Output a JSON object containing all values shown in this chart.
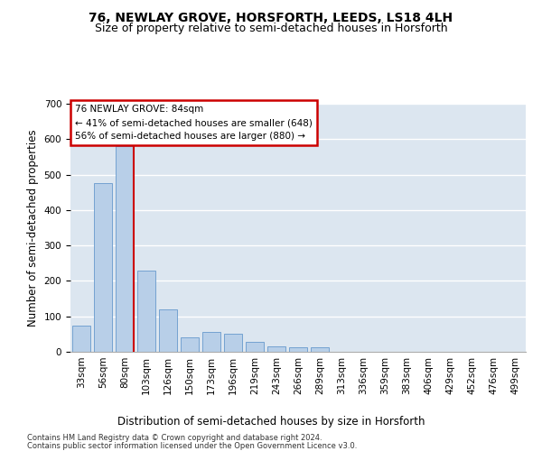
{
  "title": "76, NEWLAY GROVE, HORSFORTH, LEEDS, LS18 4LH",
  "subtitle": "Size of property relative to semi-detached houses in Horsforth",
  "xlabel": "Distribution of semi-detached houses by size in Horsforth",
  "ylabel": "Number of semi-detached properties",
  "bin_labels": [
    "33sqm",
    "56sqm",
    "80sqm",
    "103sqm",
    "126sqm",
    "150sqm",
    "173sqm",
    "196sqm",
    "219sqm",
    "243sqm",
    "266sqm",
    "289sqm",
    "313sqm",
    "336sqm",
    "359sqm",
    "383sqm",
    "406sqm",
    "429sqm",
    "452sqm",
    "476sqm",
    "499sqm"
  ],
  "bar_values": [
    75,
    475,
    580,
    230,
    120,
    40,
    55,
    50,
    28,
    15,
    14,
    12,
    0,
    0,
    0,
    0,
    0,
    0,
    0,
    0,
    0
  ],
  "bar_color": "#b8cfe8",
  "bar_edge_color": "#6699cc",
  "red_line_bin": 2,
  "red_line_label": "76 NEWLAY GROVE: 84sqm",
  "annotation_smaller": "← 41% of semi-detached houses are smaller (648)",
  "annotation_larger": "56% of semi-detached houses are larger (880) →",
  "annotation_box_facecolor": "#ffffff",
  "annotation_box_edgecolor": "#cc0000",
  "ylim": [
    0,
    700
  ],
  "yticks": [
    0,
    100,
    200,
    300,
    400,
    500,
    600,
    700
  ],
  "background_color": "#dce6f0",
  "footer_line1": "Contains HM Land Registry data © Crown copyright and database right 2024.",
  "footer_line2": "Contains public sector information licensed under the Open Government Licence v3.0.",
  "title_fontsize": 10,
  "subtitle_fontsize": 9,
  "xlabel_fontsize": 8.5,
  "ylabel_fontsize": 8.5,
  "tick_fontsize": 7.5,
  "annot_fontsize": 7.5,
  "footer_fontsize": 6
}
